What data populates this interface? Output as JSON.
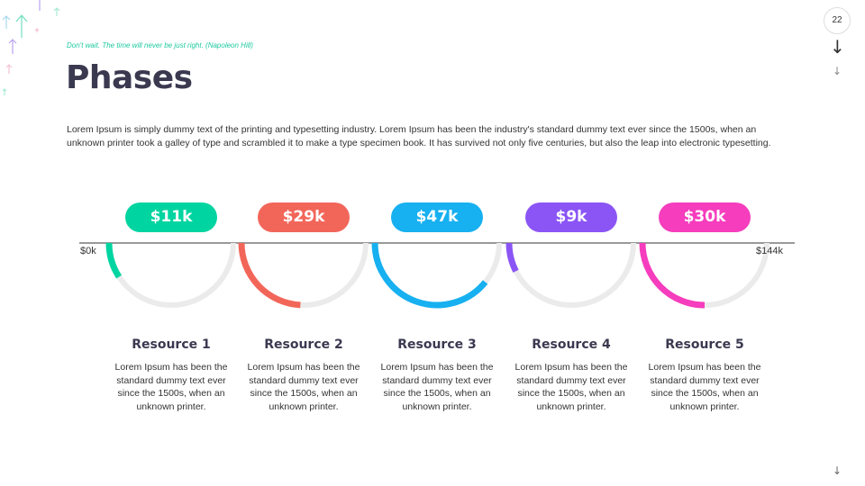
{
  "quote": "Don't wait. The time will never be just right. (Napoleon Hill)",
  "title": "Phases",
  "body": "Lorem Ipsum is simply dummy text of the printing and typesetting industry. Lorem Ipsum has been the industry's standard dummy text ever since the 1500s, when an unknown printer took a galley of type and scrambled it to make a type specimen book. It has survived not only five centuries, but also the leap into electronic typesetting.",
  "page_number": "22",
  "axis": {
    "min_label": "$0k",
    "max_label": "$144k"
  },
  "resources": [
    {
      "name": "Resource 1",
      "value_label": "$11k",
      "value": 11,
      "color": "#00d4a0",
      "desc": "Lorem Ipsum has been the standard dummy text ever since the 1500s, when an unknown printer."
    },
    {
      "name": "Resource 2",
      "value_label": "$29k",
      "value": 29,
      "color": "#f2665a",
      "desc": "Lorem Ipsum has been the standard dummy text ever since the 1500s, when an unknown printer."
    },
    {
      "name": "Resource 3",
      "value_label": "$47k",
      "value": 47,
      "color": "#17b0f0",
      "desc": "Lorem Ipsum has been the standard dummy text ever since the 1500s, when an unknown printer."
    },
    {
      "name": "Resource 4",
      "value_label": "$9k",
      "value": 9,
      "color": "#8b55f5",
      "desc": "Lorem Ipsum has been the standard dummy text ever since the 1500s, when an unknown printer."
    },
    {
      "name": "Resource 5",
      "value_label": "$30k",
      "value": 30,
      "color": "#f53dbd",
      "desc": "Lorem Ipsum has been the standard dummy text ever since the 1500s, when an unknown printer."
    }
  ]
}
